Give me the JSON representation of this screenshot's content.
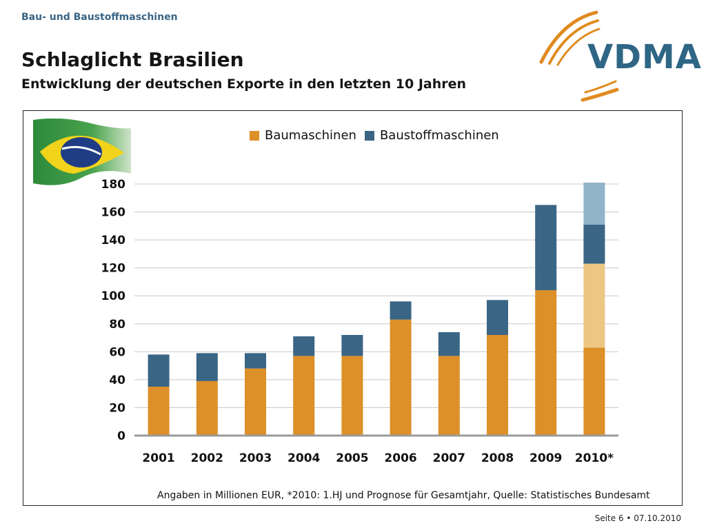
{
  "header": {
    "kicker": "Bau- und Baustoffmaschinen",
    "title": "Schlaglicht Brasilien",
    "subtitle": "Entwicklung der deutschen Exporte in den letzten 10 Jahren"
  },
  "logo": {
    "text": "VDMA",
    "color": "#2f6585",
    "arc_color": "#e08a1e"
  },
  "chart_data": {
    "type": "bar",
    "stacked": true,
    "categories": [
      "2001",
      "2002",
      "2003",
      "2004",
      "2005",
      "2006",
      "2007",
      "2008",
      "2009",
      "2010*"
    ],
    "series": [
      {
        "name": "Baumaschinen",
        "color": "#dd8f28",
        "values": [
          35,
          39,
          48,
          57,
          57,
          83,
          57,
          72,
          104,
          63
        ]
      },
      {
        "name": "Baustoffmaschinen",
        "color": "#3a6585",
        "values": [
          23,
          20,
          11,
          14,
          15,
          13,
          17,
          25,
          61,
          28
        ]
      }
    ],
    "forecast_2010": {
      "baumaschinen_prognose": 60,
      "baustoffmaschinen_prognose": 30,
      "baumaschinen_color": "#ecc783",
      "baustoffmaschinen_color": "#92b4c8"
    },
    "ylim": [
      0,
      180
    ],
    "yticks": [
      0,
      20,
      40,
      60,
      80,
      100,
      120,
      140,
      160,
      180
    ],
    "grid": true,
    "legend_position": "top-center",
    "xlabel": "",
    "ylabel": ""
  },
  "note": "Angaben in Millionen EUR, *2010: 1.HJ und Prognose für Gesamtjahr, Quelle: Statistisches Bundesamt",
  "footer": "Seite 6 • 07.10.2010"
}
